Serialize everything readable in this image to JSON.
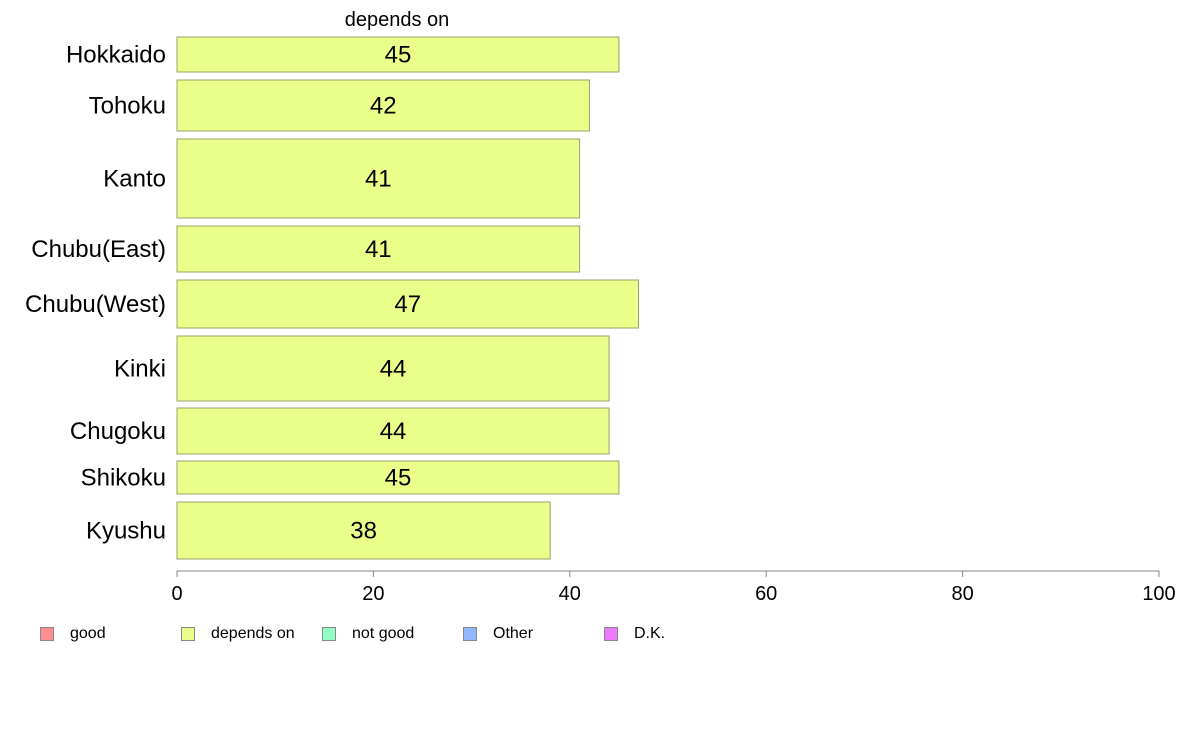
{
  "chart_data": {
    "type": "bar",
    "orientation": "horizontal",
    "title": "depends on",
    "categories": [
      "Hokkaido",
      "Tohoku",
      "Kanto",
      "Chubu(East)",
      "Chubu(West)",
      "Kinki",
      "Chugoku",
      "Shikoku",
      "Kyushu"
    ],
    "values": [
      45,
      42,
      41,
      41,
      47,
      44,
      44,
      45,
      38
    ],
    "data_labels": [
      "45",
      "42",
      "41",
      "41",
      "47",
      "44",
      "44",
      "45",
      "38"
    ],
    "xlim": [
      0,
      100
    ],
    "x_ticks": [
      "0",
      "20",
      "40",
      "60",
      "80",
      "100"
    ],
    "bar_color": "#eaff8a",
    "bar_border_color": "#9aa06a",
    "axis_color": "#888888",
    "grid": false,
    "legend_position": "bottom",
    "legend": [
      {
        "label": "good",
        "color": "#ff8f8f"
      },
      {
        "label": "depends on",
        "color": "#eaff8a"
      },
      {
        "label": "not good",
        "color": "#8fffc6"
      },
      {
        "label": "Other",
        "color": "#8fb8ff"
      },
      {
        "label": "D.K.",
        "color": "#ee7bff"
      }
    ]
  }
}
